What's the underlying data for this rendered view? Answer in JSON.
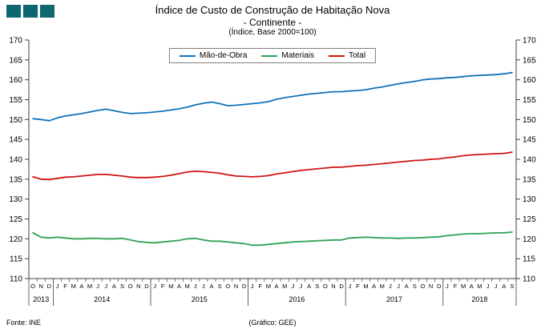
{
  "logo": {
    "square_color": "#0d6770",
    "square_count": 3
  },
  "title": {
    "line1": "Índice de Custo de Construção de Habitação Nova",
    "line2": "- Continente -",
    "line3": "(Índice, Base 2000=100)"
  },
  "footer": {
    "source": "Fonte: INE",
    "credit": "(Gráfico: GEE)"
  },
  "chart_data": {
    "type": "line",
    "title": "Índice de Custo de Construção de Habitação Nova - Continente -",
    "subtitle": "(Índice, Base 2000=100)",
    "ylabel": "",
    "xlabel": "",
    "ylim": [
      110,
      170
    ],
    "ytick_step": 5,
    "grid": false,
    "legend_position": "top-center",
    "x_month_labels": [
      "O",
      "N",
      "D",
      "J",
      "F",
      "M",
      "A",
      "M",
      "J",
      "J",
      "A",
      "S",
      "O",
      "N",
      "D",
      "J",
      "F",
      "M",
      "A",
      "M",
      "J",
      "J",
      "A",
      "S",
      "O",
      "N",
      "D",
      "J",
      "F",
      "M",
      "A",
      "M",
      "J",
      "J",
      "A",
      "S",
      "O",
      "N",
      "D",
      "J",
      "F",
      "M",
      "A",
      "M",
      "J",
      "J",
      "A",
      "S",
      "O",
      "N",
      "D",
      "J",
      "F",
      "M",
      "A",
      "M",
      "J",
      "J",
      "A",
      "S"
    ],
    "year_spans": [
      {
        "label": "2013",
        "count": 3
      },
      {
        "label": "2014",
        "count": 12
      },
      {
        "label": "2015",
        "count": 12
      },
      {
        "label": "2016",
        "count": 12
      },
      {
        "label": "2017",
        "count": 12
      },
      {
        "label": "2018",
        "count": 9
      }
    ],
    "series": [
      {
        "name": "Mão-de-Obra",
        "color": "#1072ba",
        "values": [
          150.2,
          150.0,
          149.7,
          150.4,
          150.9,
          151.2,
          151.5,
          151.9,
          152.3,
          152.6,
          152.2,
          151.8,
          151.5,
          151.6,
          151.7,
          151.9,
          152.1,
          152.4,
          152.7,
          153.1,
          153.7,
          154.1,
          154.4,
          154.0,
          153.5,
          153.6,
          153.8,
          154.0,
          154.2,
          154.5,
          155.1,
          155.5,
          155.8,
          156.1,
          156.4,
          156.6,
          156.8,
          157.0,
          157.0,
          157.2,
          157.3,
          157.5,
          157.9,
          158.2,
          158.6,
          159.0,
          159.3,
          159.6,
          160.0,
          160.2,
          160.3,
          160.5,
          160.6,
          160.8,
          161.0,
          161.1,
          161.2,
          161.3,
          161.5,
          161.8
        ]
      },
      {
        "name": "Materiais",
        "color": "#2fa355",
        "values": [
          121.5,
          120.4,
          120.2,
          120.4,
          120.2,
          120.0,
          120.0,
          120.1,
          120.1,
          120.0,
          120.0,
          120.1,
          119.7,
          119.3,
          119.1,
          119.0,
          119.2,
          119.4,
          119.6,
          120.0,
          120.1,
          119.7,
          119.4,
          119.4,
          119.2,
          119.0,
          118.8,
          118.4,
          118.4,
          118.6,
          118.8,
          119.0,
          119.2,
          119.3,
          119.4,
          119.5,
          119.6,
          119.7,
          119.7,
          120.2,
          120.3,
          120.4,
          120.3,
          120.2,
          120.2,
          120.1,
          120.2,
          120.2,
          120.3,
          120.4,
          120.5,
          120.8,
          121.0,
          121.2,
          121.3,
          121.3,
          121.4,
          121.5,
          121.5,
          121.7
        ]
      },
      {
        "name": "Total",
        "color": "#d11313",
        "values": [
          135.6,
          135.0,
          134.9,
          135.2,
          135.5,
          135.6,
          135.8,
          136.0,
          136.2,
          136.2,
          136.0,
          135.8,
          135.5,
          135.4,
          135.4,
          135.5,
          135.7,
          136.0,
          136.4,
          136.8,
          137.0,
          136.9,
          136.7,
          136.5,
          136.1,
          135.8,
          135.7,
          135.6,
          135.7,
          135.9,
          136.3,
          136.6,
          136.9,
          137.2,
          137.4,
          137.6,
          137.8,
          138.0,
          138.0,
          138.2,
          138.4,
          138.5,
          138.7,
          138.9,
          139.1,
          139.3,
          139.5,
          139.7,
          139.8,
          140.0,
          140.1,
          140.4,
          140.6,
          140.9,
          141.1,
          141.2,
          141.3,
          141.4,
          141.5,
          141.8
        ]
      }
    ]
  }
}
